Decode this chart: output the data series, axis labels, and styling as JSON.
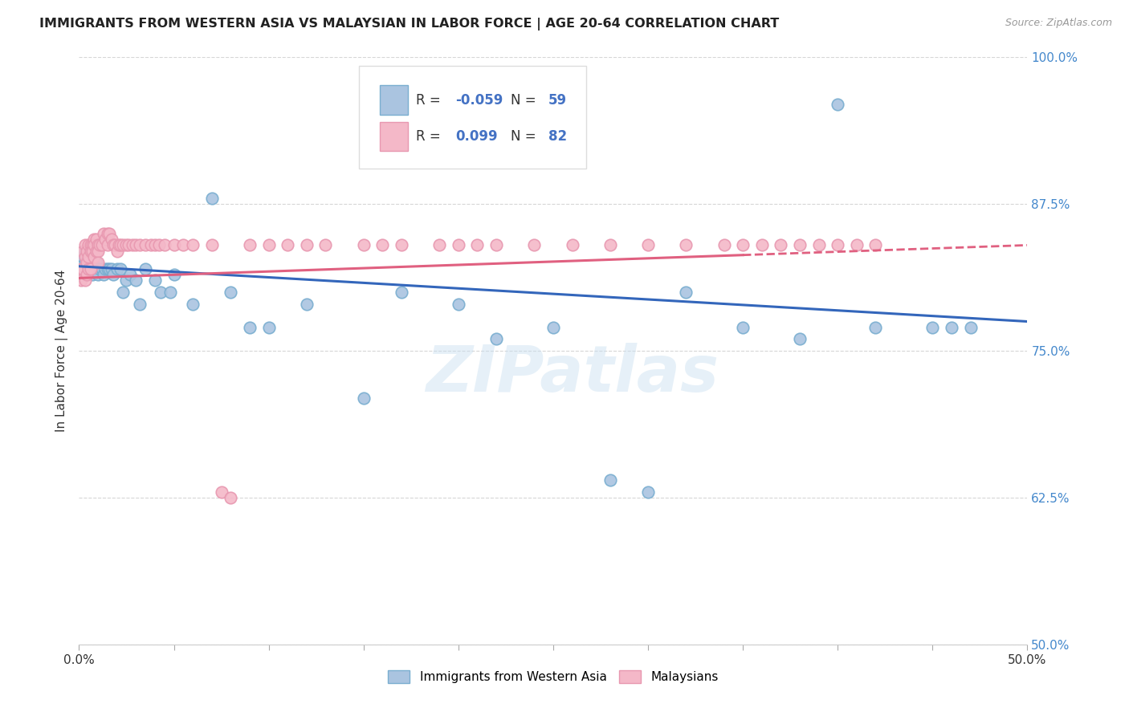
{
  "title": "IMMIGRANTS FROM WESTERN ASIA VS MALAYSIAN IN LABOR FORCE | AGE 20-64 CORRELATION CHART",
  "source": "Source: ZipAtlas.com",
  "ylabel": "In Labor Force | Age 20-64",
  "xlim": [
    0.0,
    0.5
  ],
  "ylim": [
    0.5,
    1.0
  ],
  "yticks": [
    0.5,
    0.625,
    0.75,
    0.875,
    1.0
  ],
  "yticklabels": [
    "50.0%",
    "62.5%",
    "75.0%",
    "87.5%",
    "100.0%"
  ],
  "blue_r": -0.059,
  "blue_n": 59,
  "pink_r": 0.099,
  "pink_n": 82,
  "blue_color": "#aac4e0",
  "pink_color": "#f4b8c8",
  "blue_edge": "#7aaed0",
  "pink_edge": "#e898b0",
  "blue_trend_color": "#3366bb",
  "pink_trend_color": "#e06080",
  "watermark": "ZIPatlas",
  "blue_x": [
    0.001,
    0.002,
    0.002,
    0.003,
    0.003,
    0.003,
    0.004,
    0.004,
    0.005,
    0.005,
    0.006,
    0.006,
    0.007,
    0.007,
    0.008,
    0.009,
    0.01,
    0.01,
    0.011,
    0.012,
    0.013,
    0.014,
    0.015,
    0.016,
    0.017,
    0.018,
    0.02,
    0.022,
    0.023,
    0.025,
    0.027,
    0.03,
    0.032,
    0.035,
    0.04,
    0.043,
    0.048,
    0.05,
    0.06,
    0.07,
    0.08,
    0.09,
    0.1,
    0.12,
    0.15,
    0.17,
    0.2,
    0.22,
    0.25,
    0.28,
    0.3,
    0.32,
    0.35,
    0.38,
    0.4,
    0.42,
    0.45,
    0.46,
    0.47
  ],
  "blue_y": [
    0.82,
    0.83,
    0.815,
    0.835,
    0.825,
    0.82,
    0.83,
    0.815,
    0.825,
    0.82,
    0.83,
    0.82,
    0.825,
    0.815,
    0.82,
    0.825,
    0.82,
    0.815,
    0.82,
    0.82,
    0.815,
    0.82,
    0.82,
    0.82,
    0.82,
    0.815,
    0.82,
    0.82,
    0.8,
    0.81,
    0.815,
    0.81,
    0.79,
    0.82,
    0.81,
    0.8,
    0.8,
    0.815,
    0.79,
    0.88,
    0.8,
    0.77,
    0.77,
    0.79,
    0.71,
    0.8,
    0.79,
    0.76,
    0.77,
    0.64,
    0.63,
    0.8,
    0.77,
    0.76,
    0.96,
    0.77,
    0.77,
    0.77,
    0.77
  ],
  "pink_x": [
    0.001,
    0.001,
    0.002,
    0.002,
    0.003,
    0.003,
    0.003,
    0.004,
    0.004,
    0.004,
    0.005,
    0.005,
    0.005,
    0.006,
    0.006,
    0.006,
    0.007,
    0.007,
    0.008,
    0.008,
    0.008,
    0.009,
    0.009,
    0.01,
    0.01,
    0.01,
    0.011,
    0.012,
    0.013,
    0.014,
    0.015,
    0.015,
    0.016,
    0.017,
    0.018,
    0.019,
    0.02,
    0.021,
    0.022,
    0.023,
    0.025,
    0.026,
    0.028,
    0.03,
    0.032,
    0.035,
    0.038,
    0.04,
    0.042,
    0.045,
    0.05,
    0.055,
    0.06,
    0.07,
    0.075,
    0.08,
    0.09,
    0.1,
    0.11,
    0.12,
    0.13,
    0.15,
    0.16,
    0.17,
    0.19,
    0.2,
    0.21,
    0.22,
    0.24,
    0.26,
    0.28,
    0.3,
    0.32,
    0.34,
    0.35,
    0.36,
    0.37,
    0.38,
    0.39,
    0.4,
    0.41,
    0.42
  ],
  "pink_y": [
    0.82,
    0.81,
    0.835,
    0.82,
    0.84,
    0.83,
    0.81,
    0.835,
    0.825,
    0.815,
    0.84,
    0.83,
    0.82,
    0.84,
    0.835,
    0.82,
    0.84,
    0.835,
    0.845,
    0.84,
    0.83,
    0.845,
    0.835,
    0.84,
    0.835,
    0.825,
    0.84,
    0.84,
    0.85,
    0.845,
    0.85,
    0.84,
    0.85,
    0.845,
    0.84,
    0.84,
    0.835,
    0.84,
    0.84,
    0.84,
    0.84,
    0.84,
    0.84,
    0.84,
    0.84,
    0.84,
    0.84,
    0.84,
    0.84,
    0.84,
    0.84,
    0.84,
    0.84,
    0.84,
    0.63,
    0.625,
    0.84,
    0.84,
    0.84,
    0.84,
    0.84,
    0.84,
    0.84,
    0.84,
    0.84,
    0.84,
    0.84,
    0.84,
    0.84,
    0.84,
    0.84,
    0.84,
    0.84,
    0.84,
    0.84,
    0.84,
    0.84,
    0.84,
    0.84,
    0.84,
    0.84,
    0.84
  ]
}
